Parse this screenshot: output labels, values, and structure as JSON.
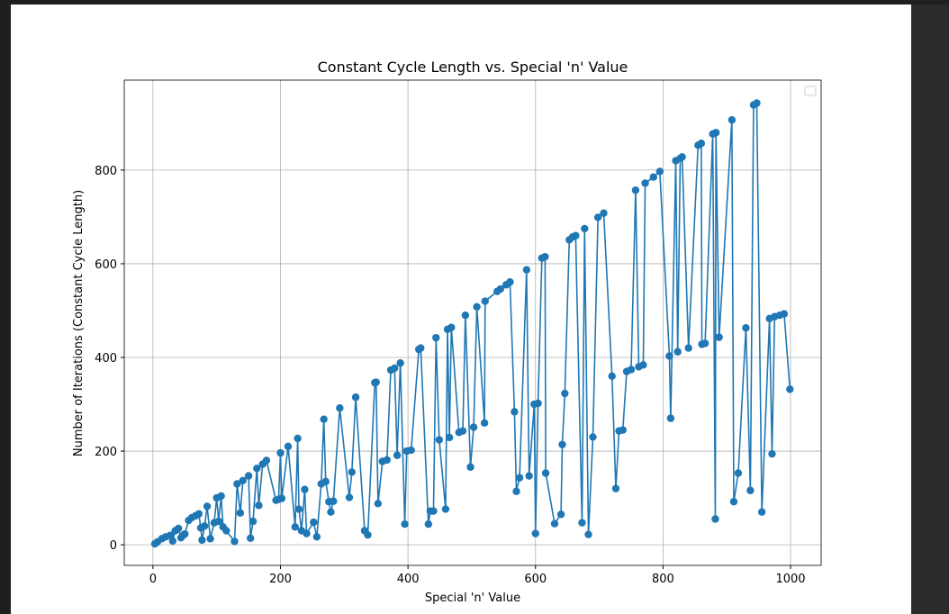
{
  "chart_data": {
    "type": "line",
    "title": "Constant Cycle Length vs. Special 'n' Value",
    "x_label": "Special 'n' Value",
    "y_label": "Number of Iterations (Constant Cycle Length)",
    "color": "#1f77b4",
    "grid": true,
    "markers": true,
    "xlim": [
      -45,
      1048
    ],
    "ylim": [
      -44,
      992
    ],
    "xticks": [
      0,
      200,
      400,
      600,
      800,
      1000
    ],
    "yticks": [
      0,
      200,
      400,
      600,
      800
    ],
    "x": [
      3,
      7,
      14,
      20,
      27,
      31,
      35,
      40,
      44,
      47,
      50,
      56,
      61,
      67,
      72,
      75,
      77,
      81,
      85,
      90,
      96,
      100,
      103,
      107,
      110,
      115,
      128,
      132,
      137,
      141,
      150,
      153,
      157,
      163,
      166,
      172,
      178,
      193,
      197,
      200,
      202,
      212,
      223,
      227,
      229,
      233,
      238,
      241,
      252,
      257,
      264,
      268,
      271,
      276,
      279,
      283,
      293,
      308,
      312,
      318,
      332,
      337,
      348,
      350,
      353,
      360,
      367,
      373,
      379,
      383,
      388,
      395,
      398,
      405,
      417,
      420,
      432,
      435,
      440,
      444,
      449,
      459,
      462,
      465,
      468,
      480,
      486,
      490,
      498,
      503,
      508,
      520,
      521,
      540,
      545,
      554,
      560,
      567,
      570,
      575,
      586,
      590,
      598,
      600,
      604,
      610,
      615,
      616,
      630,
      640,
      642,
      646,
      653,
      658,
      663,
      673,
      677,
      683,
      690,
      698,
      707,
      720,
      726,
      731,
      737,
      743,
      750,
      757,
      762,
      769,
      772,
      785,
      795,
      810,
      812,
      820,
      823,
      827,
      830,
      840,
      855,
      860,
      861,
      866,
      878,
      882,
      883,
      888,
      908,
      911,
      918,
      930,
      937,
      942,
      947,
      955,
      967,
      971,
      975,
      983,
      990,
      999
    ],
    "values": [
      2,
      6,
      13,
      17,
      20,
      8,
      30,
      35,
      15,
      20,
      23,
      52,
      58,
      62,
      66,
      36,
      10,
      40,
      82,
      13,
      47,
      100,
      50,
      104,
      38,
      30,
      7,
      130,
      68,
      137,
      147,
      14,
      50,
      163,
      84,
      172,
      180,
      95,
      97,
      196,
      99,
      210,
      38,
      227,
      76,
      30,
      118,
      24,
      48,
      17,
      130,
      268,
      135,
      92,
      70,
      93,
      292,
      101,
      155,
      315,
      30,
      21,
      346,
      347,
      88,
      178,
      181,
      373,
      377,
      191,
      388,
      44,
      200,
      202,
      417,
      420,
      44,
      72,
      72,
      442,
      224,
      76,
      460,
      229,
      464,
      240,
      243,
      490,
      166,
      251,
      508,
      260,
      520,
      541,
      546,
      555,
      561,
      284,
      114,
      143,
      587,
      147,
      300,
      24,
      302,
      612,
      615,
      153,
      45,
      65,
      214,
      323,
      651,
      657,
      660,
      47,
      675,
      22,
      230,
      699,
      708,
      360,
      120,
      243,
      245,
      370,
      374,
      757,
      380,
      384,
      772,
      785,
      797,
      403,
      270,
      820,
      412,
      825,
      828,
      420,
      853,
      857,
      428,
      430,
      877,
      55,
      880,
      443,
      907,
      92,
      153,
      463,
      116,
      939,
      943,
      70,
      483,
      194,
      487,
      490,
      493,
      332
    ]
  }
}
